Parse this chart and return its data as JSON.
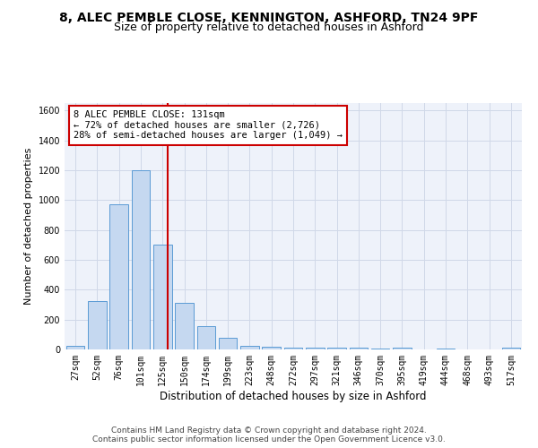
{
  "title1": "8, ALEC PEMBLE CLOSE, KENNINGTON, ASHFORD, TN24 9PF",
  "title2": "Size of property relative to detached houses in Ashford",
  "xlabel": "Distribution of detached houses by size in Ashford",
  "ylabel": "Number of detached properties",
  "categories": [
    "27sqm",
    "52sqm",
    "76sqm",
    "101sqm",
    "125sqm",
    "150sqm",
    "174sqm",
    "199sqm",
    "223sqm",
    "248sqm",
    "272sqm",
    "297sqm",
    "321sqm",
    "346sqm",
    "370sqm",
    "395sqm",
    "419sqm",
    "444sqm",
    "468sqm",
    "493sqm",
    "517sqm"
  ],
  "values": [
    25,
    325,
    970,
    1200,
    700,
    310,
    155,
    80,
    25,
    18,
    15,
    13,
    10,
    10,
    8,
    10,
    0,
    8,
    0,
    0,
    12
  ],
  "bar_color": "#c5d8f0",
  "bar_edge_color": "#5b9bd5",
  "property_line_label": "8 ALEC PEMBLE CLOSE: 131sqm",
  "annotation_line1": "← 72% of detached houses are smaller (2,726)",
  "annotation_line2": "28% of semi-detached houses are larger (1,049) →",
  "annotation_box_color": "#ffffff",
  "annotation_box_edge": "#cc0000",
  "vline_color": "#cc0000",
  "ylim": [
    0,
    1650
  ],
  "yticks": [
    0,
    200,
    400,
    600,
    800,
    1000,
    1200,
    1400,
    1600
  ],
  "grid_color": "#d0d8e8",
  "bg_color": "#eef2fa",
  "footnote1": "Contains HM Land Registry data © Crown copyright and database right 2024.",
  "footnote2": "Contains public sector information licensed under the Open Government Licence v3.0.",
  "title1_fontsize": 10,
  "title2_fontsize": 9,
  "xlabel_fontsize": 8.5,
  "ylabel_fontsize": 8,
  "tick_fontsize": 7,
  "annot_fontsize": 7.5,
  "footnote_fontsize": 6.5
}
